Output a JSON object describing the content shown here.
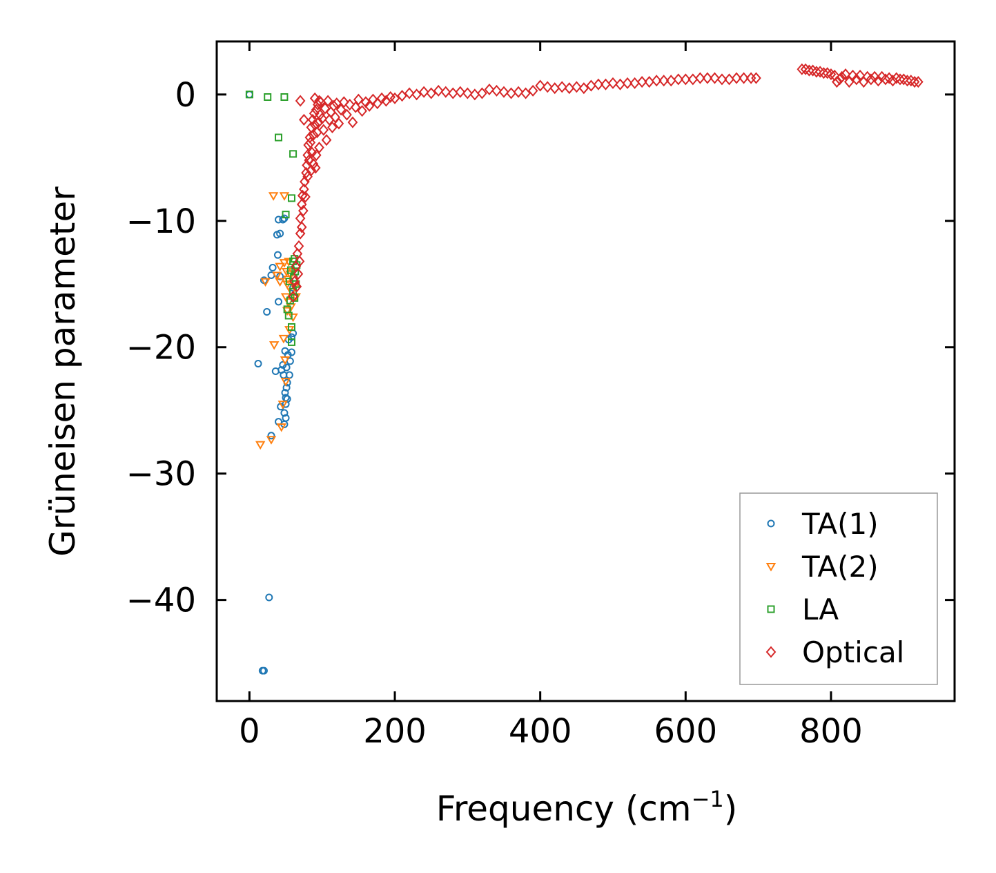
{
  "chart_data": {
    "type": "scatter",
    "title": "",
    "xlabel": "Frequency (cm",
    "xlabel_sup": "−1",
    "xlabel_end": ")",
    "ylabel": "Grüneisen parameter",
    "xlim": [
      -45,
      970
    ],
    "ylim": [
      -48,
      4.2
    ],
    "xticks": [
      0,
      200,
      400,
      600,
      800
    ],
    "xtick_labels": [
      "0",
      "200",
      "400",
      "600",
      "800"
    ],
    "yticks": [
      0,
      -10,
      -20,
      -30,
      -40
    ],
    "ytick_labels": [
      "0",
      "−10",
      "−20",
      "−30",
      "−40"
    ],
    "legend_position": "bottom-right",
    "grid": false,
    "series": [
      {
        "name": "TA(1)",
        "marker": "circle",
        "color": "#1f77b4",
        "points": [
          [
            0,
            0
          ],
          [
            18,
            -45.6
          ],
          [
            20,
            -45.6
          ],
          [
            27,
            -39.8
          ],
          [
            30,
            -27.0
          ],
          [
            12,
            -21.3
          ],
          [
            20,
            -14.7
          ],
          [
            24,
            -17.2
          ],
          [
            30,
            -14.3
          ],
          [
            32,
            -13.7
          ],
          [
            36,
            -21.9
          ],
          [
            38,
            -11.1
          ],
          [
            39,
            -12.7
          ],
          [
            40,
            -16.4
          ],
          [
            40,
            -25.9
          ],
          [
            40,
            -9.9
          ],
          [
            42,
            -14.4
          ],
          [
            42,
            -11.0
          ],
          [
            43,
            -24.7
          ],
          [
            44,
            -21.8
          ],
          [
            46,
            -9.9
          ],
          [
            46,
            -21.4
          ],
          [
            47,
            -22.2
          ],
          [
            48,
            -25.2
          ],
          [
            48,
            -26.1
          ],
          [
            48,
            -9.8
          ],
          [
            49,
            -20.3
          ],
          [
            49,
            -23.6
          ],
          [
            50,
            -24.0
          ],
          [
            50,
            -24.5
          ],
          [
            50,
            -25.6
          ],
          [
            51,
            -21.6
          ],
          [
            51,
            -23.2
          ],
          [
            52,
            -22.8
          ],
          [
            52,
            -24.1
          ],
          [
            53,
            -20.6
          ],
          [
            54,
            -19.4
          ],
          [
            55,
            -22.2
          ],
          [
            56,
            -21.1
          ],
          [
            58,
            -20.4
          ],
          [
            58,
            -19.2
          ],
          [
            60,
            -15.3
          ],
          [
            60,
            -18.9
          ]
        ]
      },
      {
        "name": "TA(2)",
        "marker": "triangle-down",
        "color": "#ff7f0e",
        "points": [
          [
            15,
            -27.7
          ],
          [
            30,
            -27.3
          ],
          [
            33,
            -8.0
          ],
          [
            34,
            -19.8
          ],
          [
            42,
            -14.8
          ],
          [
            42,
            -13.6
          ],
          [
            44,
            -26.3
          ],
          [
            46,
            -24.5
          ],
          [
            47,
            -19.3
          ],
          [
            48,
            -8.0
          ],
          [
            48,
            -13.3
          ],
          [
            49,
            -21.0
          ],
          [
            50,
            -16.0
          ],
          [
            50,
            -22.7
          ],
          [
            51,
            -14.0
          ],
          [
            52,
            -15.0
          ],
          [
            52,
            -17.1
          ],
          [
            53,
            -14.6
          ],
          [
            54,
            -13.2
          ],
          [
            54,
            -16.4
          ],
          [
            55,
            -18.6
          ],
          [
            56,
            -14.2
          ],
          [
            57,
            -16.8
          ],
          [
            58,
            -15.6
          ],
          [
            60,
            -14.0
          ],
          [
            60,
            -17.6
          ],
          [
            62,
            -15.2
          ],
          [
            64,
            -16.0
          ],
          [
            22,
            -14.8
          ],
          [
            38,
            -14.3
          ]
        ]
      },
      {
        "name": "LA",
        "marker": "square",
        "color": "#2ca02c",
        "points": [
          [
            0,
            0
          ],
          [
            25,
            -0.2
          ],
          [
            48,
            -0.2
          ],
          [
            40,
            -3.4
          ],
          [
            60,
            -4.7
          ],
          [
            58,
            -8.2
          ],
          [
            50,
            -9.5
          ],
          [
            52,
            -17.0
          ],
          [
            54,
            -17.5
          ],
          [
            55,
            -14.8
          ],
          [
            56,
            -16.3
          ],
          [
            57,
            -13.9
          ],
          [
            58,
            -18.4
          ],
          [
            60,
            -13.2
          ],
          [
            60,
            -15.6
          ],
          [
            61,
            -14.5
          ],
          [
            62,
            -13.0
          ],
          [
            62,
            -16.1
          ],
          [
            63,
            -14.0
          ],
          [
            64,
            -15.0
          ],
          [
            65,
            -13.5
          ],
          [
            58,
            -19.6
          ]
        ]
      },
      {
        "name": "Optical",
        "marker": "diamond",
        "color": "#d62728",
        "points": [
          [
            60,
            -16.0
          ],
          [
            62,
            -14.8
          ],
          [
            64,
            -13.6
          ],
          [
            65,
            -15.2
          ],
          [
            66,
            -12.6
          ],
          [
            67,
            -14.2
          ],
          [
            68,
            -12.0
          ],
          [
            69,
            -13.2
          ],
          [
            70,
            -11.0
          ],
          [
            70,
            -9.8
          ],
          [
            72,
            -10.5
          ],
          [
            72,
            -8.7
          ],
          [
            73,
            -8.0
          ],
          [
            74,
            -9.2
          ],
          [
            75,
            -7.5
          ],
          [
            76,
            -6.9
          ],
          [
            77,
            -8.1
          ],
          [
            78,
            -6.2
          ],
          [
            79,
            -5.6
          ],
          [
            80,
            -6.5
          ],
          [
            80,
            -4.8
          ],
          [
            81,
            -4.0
          ],
          [
            82,
            -5.2
          ],
          [
            83,
            -3.4
          ],
          [
            84,
            -3.8
          ],
          [
            85,
            -2.6
          ],
          [
            86,
            -4.6
          ],
          [
            87,
            -2.0
          ],
          [
            88,
            -3.2
          ],
          [
            89,
            -1.5
          ],
          [
            90,
            -2.4
          ],
          [
            91,
            -5.8
          ],
          [
            92,
            -1.2
          ],
          [
            93,
            -3.0
          ],
          [
            94,
            -0.8
          ],
          [
            95,
            -2.2
          ],
          [
            96,
            -4.2
          ],
          [
            97,
            -1.6
          ],
          [
            98,
            -0.6
          ],
          [
            100,
            -1.9
          ],
          [
            102,
            -2.8
          ],
          [
            104,
            -1.1
          ],
          [
            106,
            -3.6
          ],
          [
            108,
            -0.5
          ],
          [
            110,
            -2.0
          ],
          [
            112,
            -1.4
          ],
          [
            114,
            -2.6
          ],
          [
            116,
            -0.9
          ],
          [
            118,
            -1.8
          ],
          [
            120,
            -0.7
          ],
          [
            123,
            -2.3
          ],
          [
            126,
            -1.2
          ],
          [
            130,
            -0.6
          ],
          [
            134,
            -1.6
          ],
          [
            138,
            -0.8
          ],
          [
            142,
            -2.2
          ],
          [
            146,
            -1.0
          ],
          [
            150,
            -0.4
          ],
          [
            155,
            -1.3
          ],
          [
            160,
            -0.6
          ],
          [
            165,
            -0.9
          ],
          [
            170,
            -0.4
          ],
          [
            176,
            -0.7
          ],
          [
            182,
            -0.3
          ],
          [
            188,
            -0.5
          ],
          [
            194,
            -0.2
          ],
          [
            200,
            -0.3
          ],
          [
            210,
            -0.1
          ],
          [
            220,
            0.1
          ],
          [
            230,
            0.0
          ],
          [
            240,
            0.2
          ],
          [
            250,
            0.1
          ],
          [
            260,
            0.3
          ],
          [
            270,
            0.2
          ],
          [
            280,
            0.1
          ],
          [
            290,
            0.2
          ],
          [
            300,
            0.1
          ],
          [
            310,
            0.0
          ],
          [
            320,
            0.1
          ],
          [
            330,
            0.4
          ],
          [
            340,
            0.3
          ],
          [
            350,
            0.2
          ],
          [
            360,
            0.1
          ],
          [
            370,
            0.2
          ],
          [
            380,
            0.1
          ],
          [
            390,
            0.3
          ],
          [
            400,
            0.7
          ],
          [
            410,
            0.6
          ],
          [
            420,
            0.5
          ],
          [
            430,
            0.6
          ],
          [
            440,
            0.5
          ],
          [
            450,
            0.6
          ],
          [
            460,
            0.5
          ],
          [
            470,
            0.7
          ],
          [
            480,
            0.8
          ],
          [
            490,
            0.8
          ],
          [
            500,
            0.9
          ],
          [
            510,
            0.8
          ],
          [
            520,
            0.9
          ],
          [
            530,
            0.9
          ],
          [
            540,
            1.0
          ],
          [
            550,
            1.0
          ],
          [
            560,
            1.1
          ],
          [
            570,
            1.1
          ],
          [
            580,
            1.1
          ],
          [
            590,
            1.2
          ],
          [
            600,
            1.2
          ],
          [
            610,
            1.2
          ],
          [
            620,
            1.3
          ],
          [
            630,
            1.3
          ],
          [
            640,
            1.3
          ],
          [
            650,
            1.2
          ],
          [
            660,
            1.2
          ],
          [
            670,
            1.3
          ],
          [
            680,
            1.3
          ],
          [
            690,
            1.3
          ],
          [
            697,
            1.3
          ],
          [
            760,
            2.0
          ],
          [
            765,
            2.0
          ],
          [
            770,
            1.9
          ],
          [
            775,
            1.9
          ],
          [
            780,
            1.8
          ],
          [
            785,
            1.8
          ],
          [
            790,
            1.7
          ],
          [
            795,
            1.7
          ],
          [
            800,
            1.6
          ],
          [
            805,
            1.5
          ],
          [
            808,
            1.0
          ],
          [
            812,
            1.2
          ],
          [
            815,
            1.4
          ],
          [
            820,
            1.6
          ],
          [
            825,
            1.0
          ],
          [
            830,
            1.5
          ],
          [
            835,
            1.2
          ],
          [
            840,
            1.5
          ],
          [
            845,
            1.0
          ],
          [
            850,
            1.4
          ],
          [
            855,
            1.2
          ],
          [
            860,
            1.4
          ],
          [
            865,
            1.1
          ],
          [
            870,
            1.4
          ],
          [
            875,
            1.2
          ],
          [
            880,
            1.3
          ],
          [
            885,
            1.1
          ],
          [
            890,
            1.3
          ],
          [
            895,
            1.2
          ],
          [
            900,
            1.2
          ],
          [
            905,
            1.1
          ],
          [
            910,
            1.1
          ],
          [
            915,
            1.0
          ],
          [
            920,
            1.0
          ],
          [
            70,
            -0.5
          ],
          [
            90,
            -0.3
          ],
          [
            96,
            -0.5
          ],
          [
            75,
            -2.0
          ],
          [
            85,
            -6.0
          ],
          [
            88,
            -5.5
          ],
          [
            92,
            -4.8
          ]
        ]
      }
    ]
  }
}
